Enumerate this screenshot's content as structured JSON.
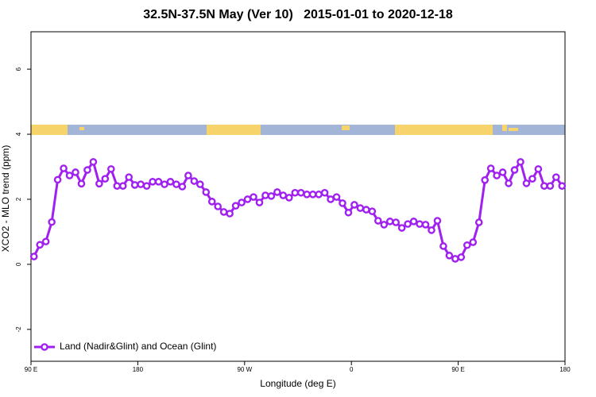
{
  "chart_data": {
    "type": "line",
    "title": "32.5N-37.5N May (Ver 10)   2015-01-01 to 2020-12-18",
    "x_label": "Longitude (deg E)",
    "y_label": "XCO2 - MLO trend (ppm)",
    "x": [
      92.5,
      97.5,
      102.5,
      107.5,
      112.5,
      117.5,
      122.5,
      127.5,
      132.5,
      137.5,
      142.5,
      147.5,
      152.5,
      157.5,
      162.5,
      167.5,
      172.5,
      177.5,
      182.5,
      187.5,
      192.5,
      197.5,
      202.5,
      207.5,
      212.5,
      217.5,
      222.5,
      227.5,
      232.5,
      237.5,
      242.5,
      247.5,
      252.5,
      257.5,
      262.5,
      267.5,
      272.5,
      277.5,
      282.5,
      287.5,
      292.5,
      297.5,
      302.5,
      307.5,
      312.5,
      317.5,
      322.5,
      327.5,
      332.5,
      337.5,
      342.5,
      347.5,
      352.5,
      357.5,
      362.5,
      367.5,
      372.5,
      377.5,
      382.5,
      387.5,
      392.5,
      397.5,
      402.5,
      407.5,
      412.5,
      417.5,
      422.5,
      427.5,
      432.5,
      437.5,
      442.5,
      447.5,
      452.5,
      457.5,
      462.5,
      467.5,
      472.5,
      477.5,
      482.5,
      487.5,
      492.5,
      497.5,
      502.5,
      507.5,
      512.5,
      517.5,
      522.5,
      527.5,
      532.5,
      537.5
    ],
    "series": [
      {
        "name": "Land (Nadir&Glint) and Ocean (Glint)",
        "color": "#a020f0",
        "values": [
          0.24,
          0.6,
          0.7,
          1.3,
          2.6,
          2.95,
          2.73,
          2.83,
          2.48,
          2.9,
          3.15,
          2.48,
          2.63,
          2.93,
          2.41,
          2.41,
          2.68,
          2.44,
          2.46,
          2.41,
          2.54,
          2.54,
          2.46,
          2.54,
          2.46,
          2.39,
          2.73,
          2.56,
          2.46,
          2.22,
          1.93,
          1.78,
          1.61,
          1.56,
          1.8,
          1.9,
          2.0,
          2.07,
          1.9,
          2.12,
          2.1,
          2.22,
          2.12,
          2.05,
          2.2,
          2.2,
          2.15,
          2.15,
          2.15,
          2.2,
          2.0,
          2.07,
          1.88,
          1.59,
          1.83,
          1.73,
          1.68,
          1.63,
          1.34,
          1.22,
          1.32,
          1.29,
          1.12,
          1.24,
          1.32,
          1.24,
          1.22,
          1.05,
          1.34,
          0.56,
          0.27,
          0.17,
          0.22,
          0.59,
          0.68,
          1.29,
          2.59,
          2.95,
          2.73,
          2.83,
          2.49,
          2.9,
          3.15,
          2.49,
          2.63,
          2.93,
          2.41,
          2.41,
          2.68,
          2.41
        ]
      }
    ],
    "xlim": [
      90,
      540
    ],
    "xticks": [
      {
        "value": 90,
        "label": "90 E"
      },
      {
        "value": 180,
        "label": "180"
      },
      {
        "value": 270,
        "label": "90 W"
      },
      {
        "value": 360,
        "label": "0"
      },
      {
        "value": 450,
        "label": "90 E"
      },
      {
        "value": 540,
        "label": "180"
      }
    ],
    "ylim": [
      -2.98,
      7.15
    ],
    "yticks": [
      -2,
      0,
      2,
      4,
      6
    ],
    "legend": "bottom-left"
  }
}
